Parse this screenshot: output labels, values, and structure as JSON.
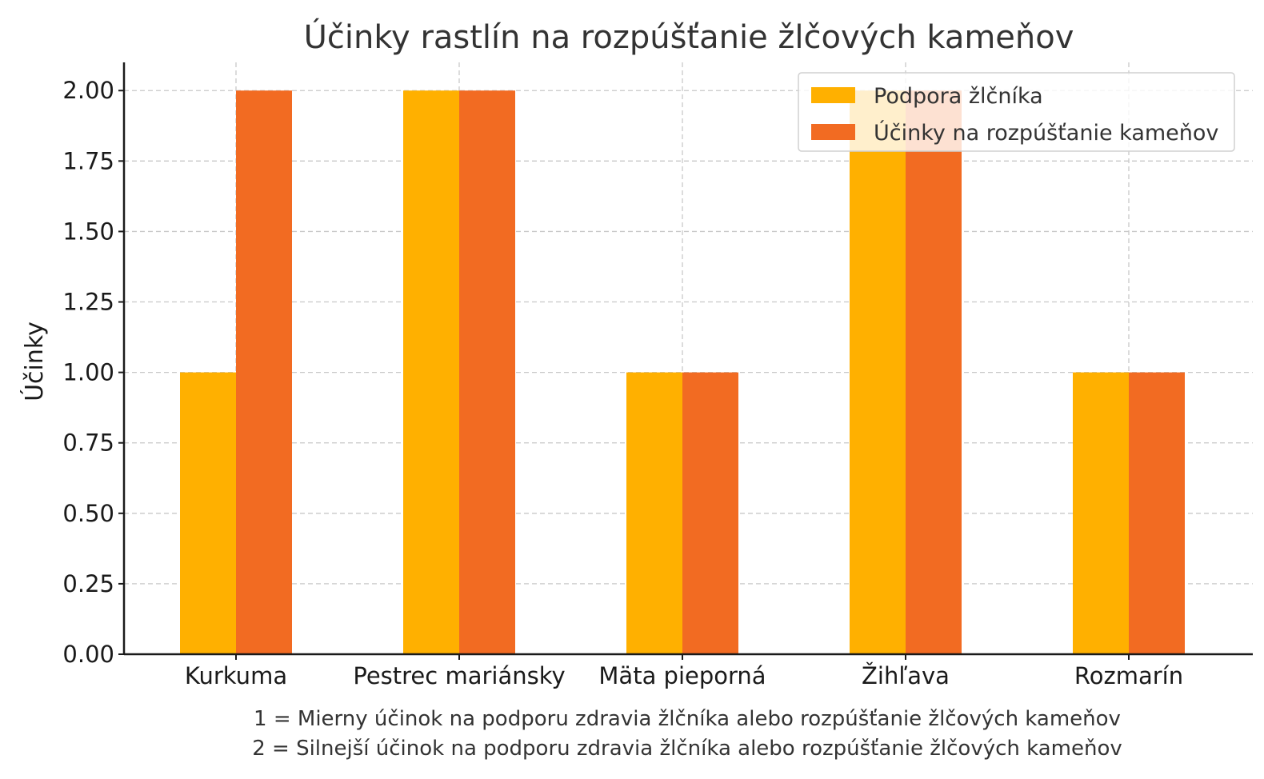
{
  "chart_data": {
    "type": "bar",
    "title": "Účinky rastlín na rozpúšťanie žlčových kameňov",
    "xlabel": "",
    "ylabel": "Účinky",
    "categories": [
      "Kurkuma",
      "Pestrec mariánsky",
      "Mäta pieporná",
      "Žihľava",
      "Rozmarín"
    ],
    "series": [
      {
        "name": "Podpora žlčníka",
        "values": [
          1,
          2,
          1,
          2,
          1
        ],
        "color": "#FFB000"
      },
      {
        "name": "Účinky na rozpúšťanie kameňov",
        "values": [
          2,
          2,
          1,
          2,
          1
        ],
        "color": "#F26B22"
      }
    ],
    "ylim": [
      0,
      2.1
    ],
    "yticks": [
      "0.00",
      "0.25",
      "0.50",
      "0.75",
      "1.00",
      "1.25",
      "1.50",
      "1.75",
      "2.00"
    ],
    "grid": true,
    "legend_position": "top-right",
    "notes": [
      "1 = Mierny účinok na podporu zdravia žlčníka alebo rozpúšťanie žlčových kameňov",
      "2 = Silnejší účinok na podporu zdravia žlčníka alebo rozpúšťanie žlčových kameňov"
    ]
  }
}
